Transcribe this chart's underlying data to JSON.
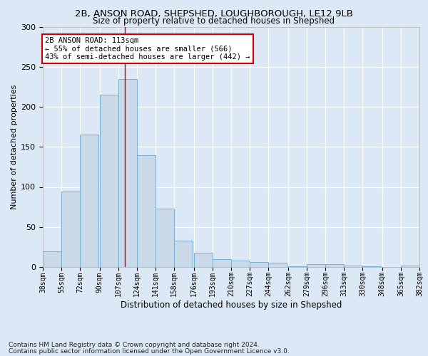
{
  "title1": "2B, ANSON ROAD, SHEPSHED, LOUGHBOROUGH, LE12 9LB",
  "title2": "Size of property relative to detached houses in Shepshed",
  "xlabel": "Distribution of detached houses by size in Shepshed",
  "ylabel": "Number of detached properties",
  "footer1": "Contains HM Land Registry data © Crown copyright and database right 2024.",
  "footer2": "Contains public sector information licensed under the Open Government Licence v3.0.",
  "annotation_line1": "2B ANSON ROAD: 113sqm",
  "annotation_line2": "← 55% of detached houses are smaller (566)",
  "annotation_line3": "43% of semi-detached houses are larger (442) →",
  "bar_left_edges": [
    38,
    55,
    72,
    90,
    107,
    124,
    141,
    158,
    176,
    193,
    210,
    227,
    244,
    262,
    279,
    296,
    313,
    330,
    348,
    365
  ],
  "bar_heights": [
    20,
    94,
    165,
    215,
    235,
    140,
    73,
    33,
    18,
    10,
    8,
    6,
    5,
    1,
    4,
    4,
    2,
    1,
    0,
    2
  ],
  "bin_width": 17,
  "bar_color": "#c9d9e8",
  "bar_edge_color": "#7bafd4",
  "vline_color": "#cc0000",
  "vline_x": 113,
  "tick_labels": [
    "38sqm",
    "55sqm",
    "72sqm",
    "90sqm",
    "107sqm",
    "124sqm",
    "141sqm",
    "158sqm",
    "176sqm",
    "193sqm",
    "210sqm",
    "227sqm",
    "244sqm",
    "262sqm",
    "279sqm",
    "296sqm",
    "313sqm",
    "330sqm",
    "348sqm",
    "365sqm",
    "382sqm"
  ],
  "ylim": [
    0,
    300
  ],
  "yticks": [
    0,
    50,
    100,
    150,
    200,
    250,
    300
  ],
  "background_color": "#dce8f5",
  "plot_bg_color": "#dce8f5",
  "grid_color": "#ffffff",
  "annotation_box_color": "#ffffff",
  "annotation_box_edge": "#cc0000",
  "title_fontsize": 9.5,
  "subtitle_fontsize": 8.5,
  "ylabel_fontsize": 8,
  "xlabel_fontsize": 8.5,
  "tick_fontsize": 7,
  "footer_fontsize": 6.5,
  "annotation_fontsize": 7.5
}
